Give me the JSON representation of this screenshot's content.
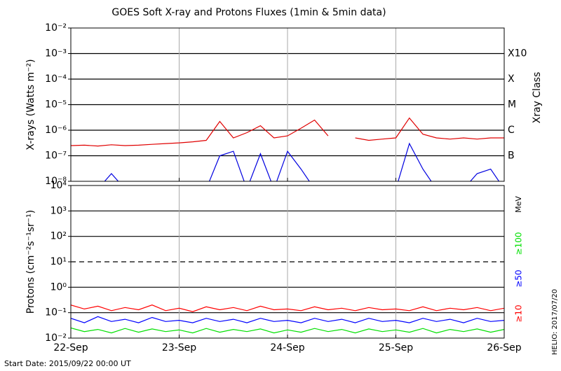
{
  "chart_data": [
    {
      "type": "line",
      "title": "GOES Soft X-ray and Protons Fluxes   (1min & 5min data)",
      "y_label": "X-rays (Watts m⁻²)",
      "y2_label": "Xray Class",
      "log_y": true,
      "grid": true,
      "ylim": [
        1e-08,
        0.01
      ],
      "yticks": [
        {
          "value": 1e-08,
          "label": "10⁻⁸"
        },
        {
          "value": 1e-07,
          "label": "10⁻⁷"
        },
        {
          "value": 1e-06,
          "label": "10⁻⁶"
        },
        {
          "value": 1e-05,
          "label": "10⁻⁵"
        },
        {
          "value": 0.0001,
          "label": "10⁻⁴"
        },
        {
          "value": 0.001,
          "label": "10⁻³"
        },
        {
          "value": 0.01,
          "label": "10⁻²"
        }
      ],
      "y2ticks": [
        {
          "value": 1e-07,
          "label": "B"
        },
        {
          "value": 1e-06,
          "label": "C"
        },
        {
          "value": 1e-05,
          "label": "M"
        },
        {
          "value": 0.0001,
          "label": "X"
        },
        {
          "value": 0.001,
          "label": "X10"
        }
      ],
      "xlim": [
        "2015-09-22T00:00",
        "2015-09-26T00:00"
      ],
      "xticks": [
        {
          "value": "2015-09-22T00:00",
          "label": "22-Sep"
        },
        {
          "value": "2015-09-23T00:00",
          "label": "23-Sep"
        },
        {
          "value": "2015-09-24T00:00",
          "label": "24-Sep"
        },
        {
          "value": "2015-09-25T00:00",
          "label": "25-Sep"
        },
        {
          "value": "2015-09-26T00:00",
          "label": "26-Sep"
        }
      ],
      "x": [
        "2015-09-22T00:00",
        "2015-09-22T03:00",
        "2015-09-22T06:00",
        "2015-09-22T09:00",
        "2015-09-22T12:00",
        "2015-09-22T15:00",
        "2015-09-22T18:00",
        "2015-09-22T21:00",
        "2015-09-23T00:00",
        "2015-09-23T03:00",
        "2015-09-23T06:00",
        "2015-09-23T09:00",
        "2015-09-23T12:00",
        "2015-09-23T15:00",
        "2015-09-23T18:00",
        "2015-09-23T21:00",
        "2015-09-24T00:00",
        "2015-09-24T03:00",
        "2015-09-24T06:00",
        "2015-09-24T09:00",
        "2015-09-24T12:00",
        "2015-09-24T15:00",
        "2015-09-24T18:00",
        "2015-09-24T21:00",
        "2015-09-25T00:00",
        "2015-09-25T03:00",
        "2015-09-25T06:00",
        "2015-09-25T09:00",
        "2015-09-25T12:00",
        "2015-09-25T15:00",
        "2015-09-25T18:00",
        "2015-09-25T21:00",
        "2015-09-26T00:00"
      ],
      "series": [
        {
          "color": "#e00000",
          "values": [
            2.5e-07,
            2.6e-07,
            2.4e-07,
            2.7e-07,
            2.5e-07,
            2.6e-07,
            2.8e-07,
            3e-07,
            3.2e-07,
            3.5e-07,
            4e-07,
            2.2e-06,
            5e-07,
            8e-07,
            1.5e-06,
            5e-07,
            6e-07,
            1.2e-06,
            2.5e-06,
            6e-07,
            null,
            5e-07,
            4e-07,
            4.5e-07,
            5e-07,
            3e-06,
            7e-07,
            5e-07,
            4.5e-07,
            5e-07,
            4.5e-07,
            5e-07,
            5e-07
          ]
        },
        {
          "color": "#0000e0",
          "values": [
            5e-09,
            5e-09,
            5e-09,
            2e-08,
            5e-09,
            5e-09,
            5e-09,
            5e-09,
            5e-09,
            5e-09,
            5e-09,
            1e-07,
            1.5e-07,
            5e-09,
            1.2e-07,
            5e-09,
            1.5e-07,
            3e-08,
            5e-09,
            5e-09,
            null,
            5e-09,
            5e-09,
            5e-09,
            5e-09,
            3e-07,
            3e-08,
            5e-09,
            5e-09,
            5e-09,
            2e-08,
            3e-08,
            5e-09
          ]
        }
      ]
    },
    {
      "type": "line",
      "y_label": "Protons (cm⁻²s⁻¹sr⁻¹)",
      "log_y": true,
      "grid": true,
      "threshold": 10,
      "energy_unit": "MeV",
      "annotations": [
        "Start Date: 2015/09/22 00:00 UT",
        "HELIO: 2017/07/20"
      ],
      "ylim": [
        0.01,
        10000
      ],
      "yticks": [
        {
          "value": 0.01,
          "label": "10⁻²"
        },
        {
          "value": 0.1,
          "label": "10⁻¹"
        },
        {
          "value": 1,
          "label": "10⁰"
        },
        {
          "value": 10,
          "label": "10¹"
        },
        {
          "value": 100,
          "label": "10²"
        },
        {
          "value": 1000,
          "label": "10³"
        },
        {
          "value": 10000,
          "label": "10⁴"
        }
      ],
      "xlim": [
        "2015-09-22T00:00",
        "2015-09-26T00:00"
      ],
      "x": [
        "2015-09-22T00:00",
        "2015-09-22T03:00",
        "2015-09-22T06:00",
        "2015-09-22T09:00",
        "2015-09-22T12:00",
        "2015-09-22T15:00",
        "2015-09-22T18:00",
        "2015-09-22T21:00",
        "2015-09-23T00:00",
        "2015-09-23T03:00",
        "2015-09-23T06:00",
        "2015-09-23T09:00",
        "2015-09-23T12:00",
        "2015-09-23T15:00",
        "2015-09-23T18:00",
        "2015-09-23T21:00",
        "2015-09-24T00:00",
        "2015-09-24T03:00",
        "2015-09-24T06:00",
        "2015-09-24T09:00",
        "2015-09-24T12:00",
        "2015-09-24T15:00",
        "2015-09-24T18:00",
        "2015-09-24T21:00",
        "2015-09-25T00:00",
        "2015-09-25T03:00",
        "2015-09-25T06:00",
        "2015-09-25T09:00",
        "2015-09-25T12:00",
        "2015-09-25T15:00",
        "2015-09-25T18:00",
        "2015-09-25T21:00",
        "2015-09-26T00:00"
      ],
      "series": [
        {
          "name": "≥10",
          "color": "#ff0000",
          "values": [
            0.2,
            0.14,
            0.18,
            0.12,
            0.16,
            0.13,
            0.2,
            0.12,
            0.15,
            0.11,
            0.17,
            0.13,
            0.16,
            0.12,
            0.18,
            0.13,
            0.14,
            0.12,
            0.17,
            0.13,
            0.15,
            0.12,
            0.16,
            0.13,
            0.14,
            0.12,
            0.17,
            0.12,
            0.15,
            0.13,
            0.16,
            0.12,
            0.15
          ]
        },
        {
          "name": "≥50",
          "color": "#0000ff",
          "values": [
            0.06,
            0.04,
            0.07,
            0.045,
            0.055,
            0.04,
            0.065,
            0.045,
            0.05,
            0.04,
            0.06,
            0.045,
            0.055,
            0.04,
            0.06,
            0.045,
            0.05,
            0.04,
            0.06,
            0.045,
            0.055,
            0.04,
            0.06,
            0.045,
            0.05,
            0.04,
            0.06,
            0.045,
            0.055,
            0.04,
            0.06,
            0.045,
            0.05
          ]
        },
        {
          "name": "≥100",
          "color": "#00e000",
          "values": [
            0.025,
            0.018,
            0.022,
            0.016,
            0.024,
            0.017,
            0.023,
            0.018,
            0.021,
            0.016,
            0.024,
            0.017,
            0.022,
            0.018,
            0.023,
            0.016,
            0.021,
            0.017,
            0.024,
            0.018,
            0.022,
            0.016,
            0.023,
            0.018,
            0.021,
            0.017,
            0.024,
            0.016,
            0.022,
            0.018,
            0.023,
            0.017,
            0.022
          ]
        }
      ]
    }
  ]
}
